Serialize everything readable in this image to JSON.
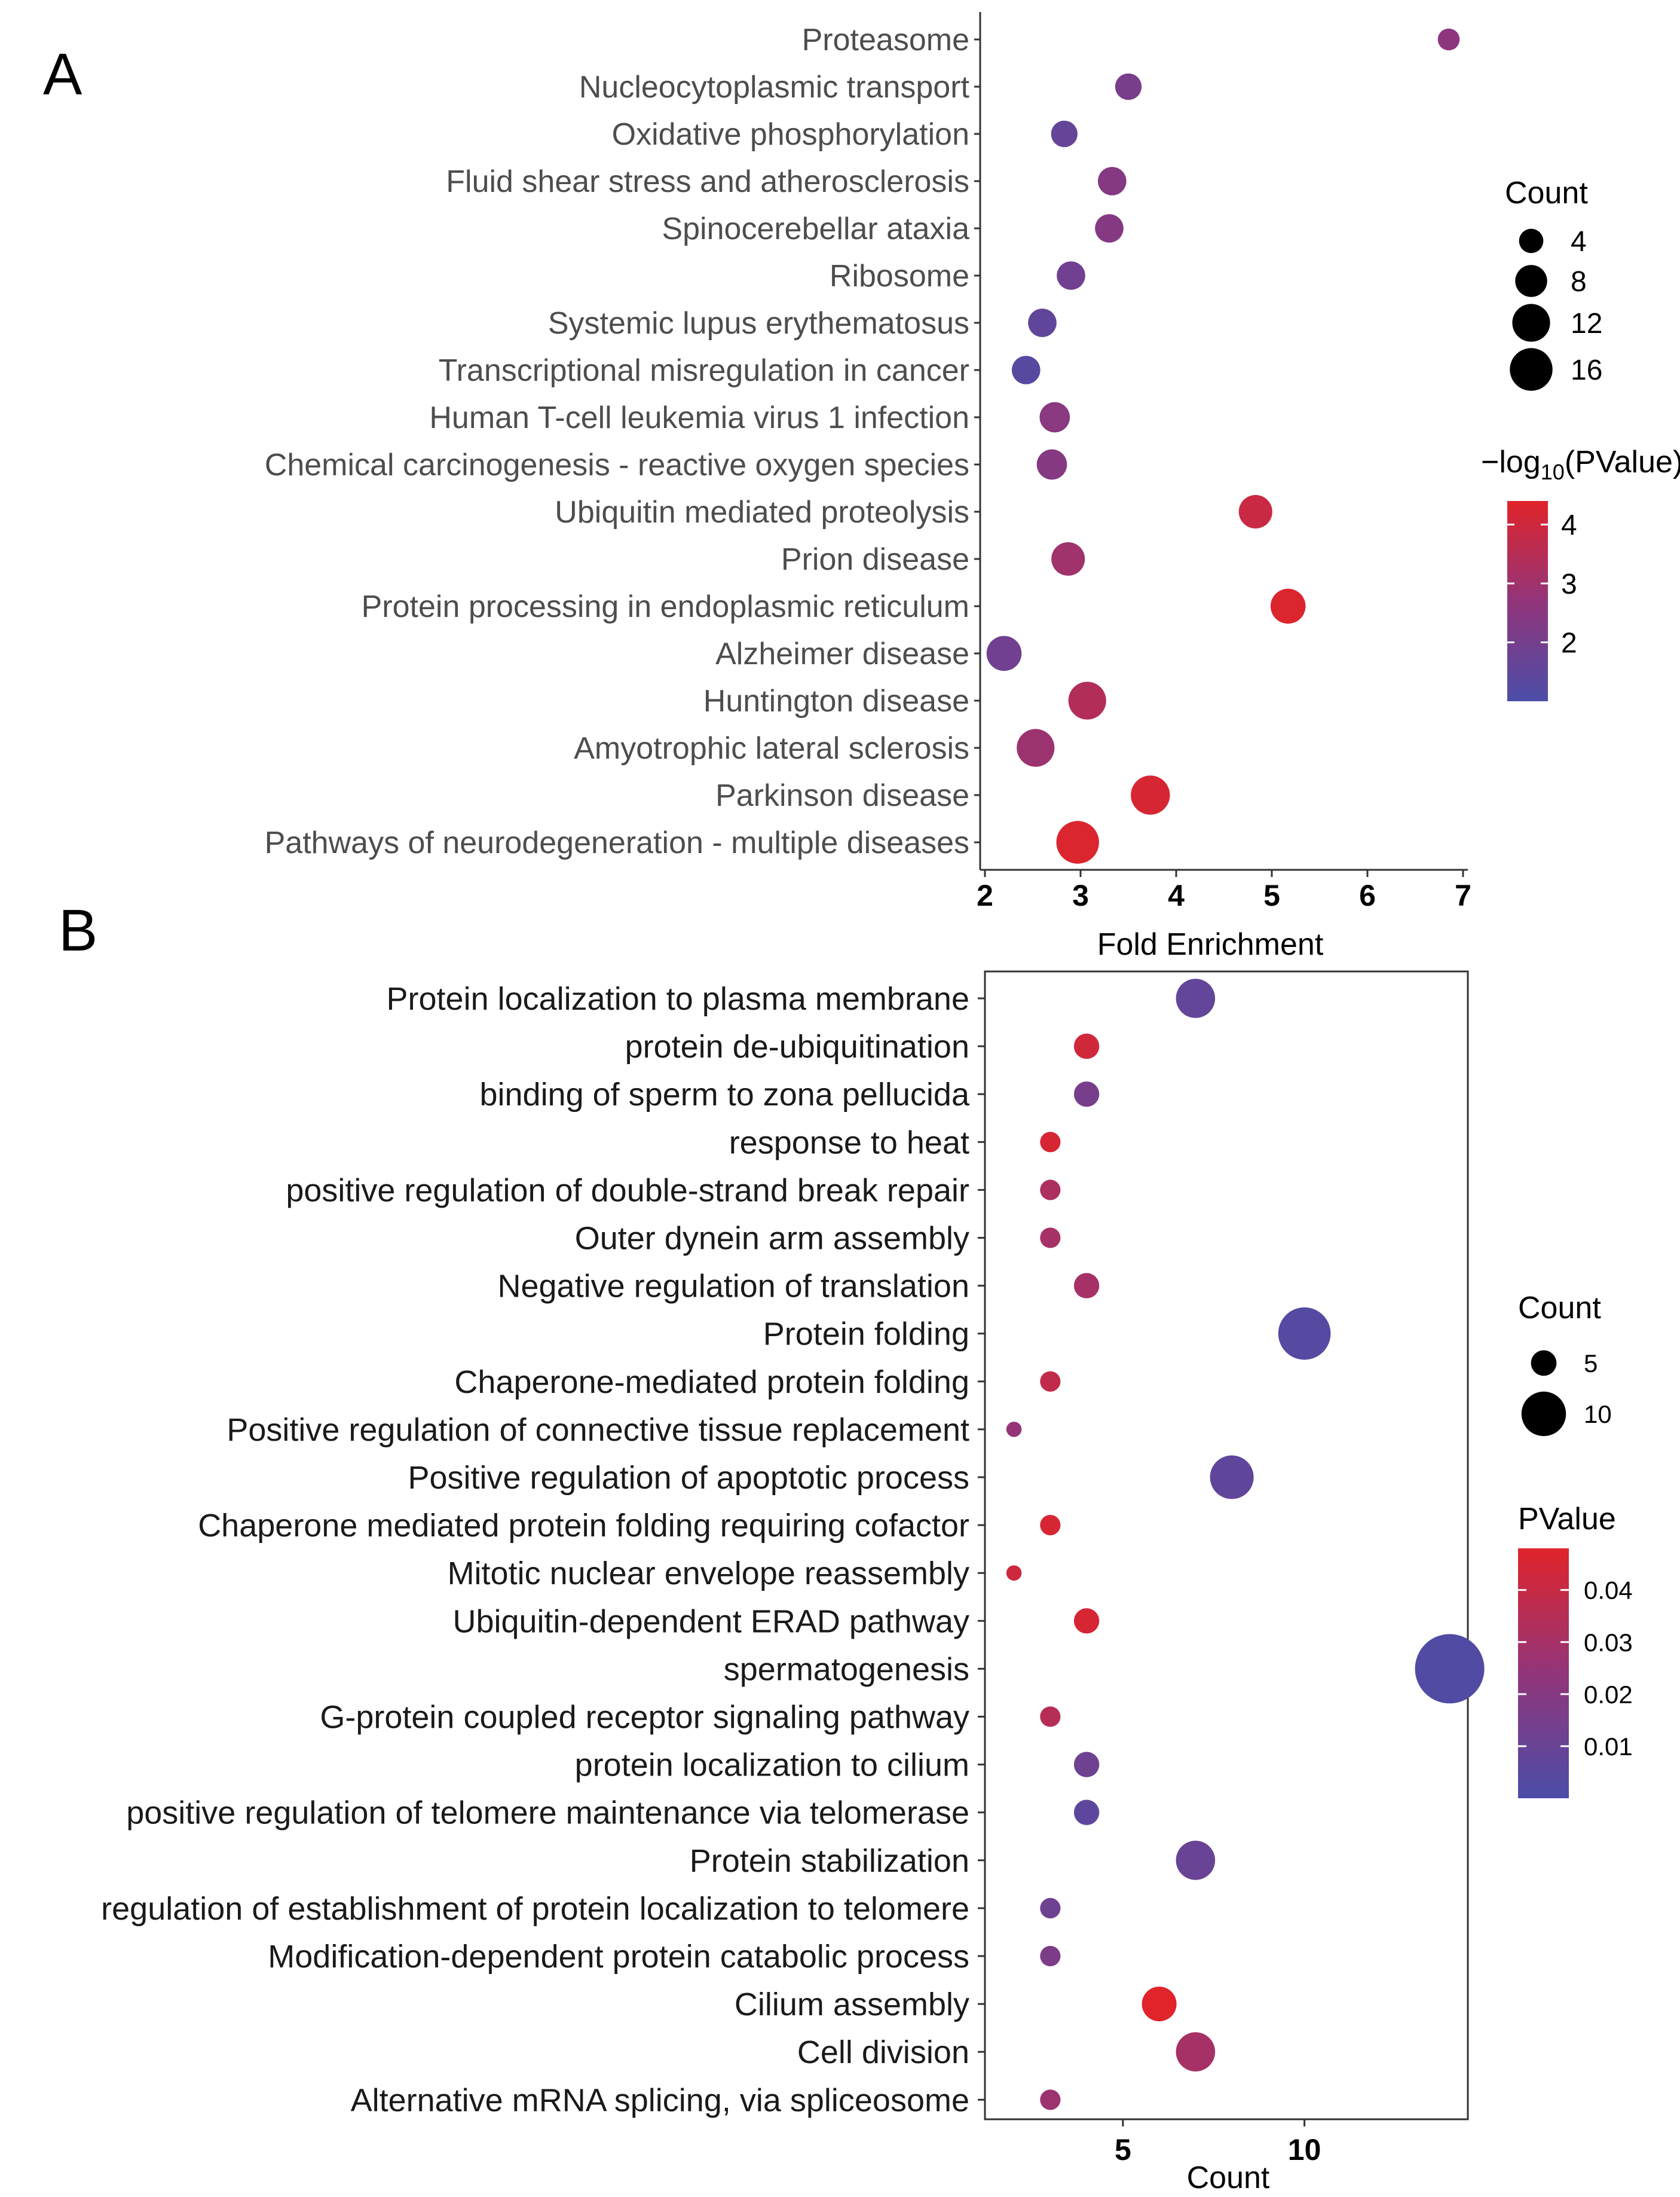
{
  "panels": {
    "A": "A",
    "B": "B"
  },
  "chart_data": [
    {
      "type": "scatter",
      "panel": "A",
      "title": "",
      "xlabel": "Fold Enrichment",
      "ylabel": "",
      "xlim": [
        1.95,
        7.05
      ],
      "xticks": [
        2,
        3,
        4,
        5,
        6,
        7
      ],
      "grid": false,
      "terms": [
        "Proteasome",
        "Nucleocytoplasmic transport",
        "Oxidative phosphorylation",
        "Fluid shear stress and atherosclerosis",
        "Spinocerebellar ataxia",
        "Ribosome",
        "Systemic lupus erythematosus",
        "Transcriptional misregulation in cancer",
        "Human T-cell leukemia virus 1 infection",
        "Chemical carcinogenesis - reactive oxygen species",
        "Ubiquitin mediated proteolysis",
        "Prion disease",
        "Protein processing in endoplasmic reticulum",
        "Alzheimer disease",
        "Huntington disease",
        "Amyotrophic lateral sclerosis",
        "Parkinson disease",
        "Pathways of neurodegeneration - multiple diseases"
      ],
      "fold_enrichment": [
        6.85,
        3.5,
        2.83,
        3.33,
        3.3,
        2.9,
        2.6,
        2.43,
        2.73,
        2.7,
        4.83,
        2.87,
        5.17,
        2.2,
        3.07,
        2.53,
        3.73,
        2.97
      ],
      "count": [
        3,
        5,
        5,
        6,
        6,
        6,
        6,
        6,
        7,
        7,
        9,
        9,
        10,
        10,
        12,
        12,
        13,
        16
      ],
      "color_value": [
        2.6,
        2.1,
        1.6,
        2.4,
        2.4,
        1.9,
        1.5,
        1.3,
        2.5,
        2.4,
        3.9,
        3.0,
        4.3,
        1.9,
        3.4,
        2.9,
        4.2,
        4.3
      ],
      "legend": {
        "size_title": "Count",
        "size_values": [
          4,
          8,
          12,
          16
        ],
        "color_title_prefix": "−log",
        "color_title_sub": "10",
        "color_title_suffix": "(PValue)",
        "color_ticks": [
          2,
          3,
          4
        ],
        "color_range": [
          1.0,
          4.4
        ],
        "color_low": "#4B4DA8",
        "color_high": "#E0242A"
      }
    },
    {
      "type": "scatter",
      "panel": "B",
      "title": "",
      "xlabel": "Count",
      "ylabel": "",
      "xlim": [
        1.2,
        14.5
      ],
      "xticks": [
        5,
        10
      ],
      "grid": false,
      "terms": [
        "Protein localization to plasma membrane",
        "protein de-ubiquitination",
        "binding of sperm to zona pellucida",
        "response to heat",
        "positive regulation of double-strand break repair",
        "Outer dynein arm assembly",
        "Negative regulation of translation",
        "Protein folding",
        "Chaperone-mediated protein folding",
        "Positive regulation of connective tissue replacement",
        "Positive regulation of apoptotic process",
        "Chaperone mediated protein folding requiring cofactor",
        "Mitotic nuclear envelope reassembly",
        "Ubiquitin-dependent ERAD pathway",
        "spermatogenesis",
        "G-protein coupled receptor signaling pathway",
        "protein localization to cilium",
        "positive regulation of telomere maintenance via telomerase",
        "Protein stabilization",
        "regulation of establishment of protein localization to telomere",
        "Modification-dependent protein catabolic process",
        "Cilium assembly",
        "Cell division",
        "Alternative mRNA splicing, via spliceosome"
      ],
      "count": [
        7,
        4,
        4,
        3,
        3,
        3,
        4,
        10,
        3,
        2,
        8,
        3,
        2,
        4,
        14,
        3,
        4,
        4,
        7,
        3,
        3,
        6,
        7,
        3
      ],
      "pvalue": [
        0.008,
        0.043,
        0.015,
        0.045,
        0.032,
        0.03,
        0.03,
        0.003,
        0.038,
        0.025,
        0.007,
        0.045,
        0.042,
        0.045,
        0.002,
        0.035,
        0.012,
        0.006,
        0.01,
        0.012,
        0.017,
        0.048,
        0.03,
        0.027
      ],
      "legend": {
        "size_title": "Count",
        "size_values": [
          5,
          10
        ],
        "color_title": "PValue",
        "color_ticks": [
          "0.01",
          "0.02",
          "0.03",
          "0.04"
        ],
        "color_tick_values": [
          0.01,
          0.02,
          0.03,
          0.04
        ],
        "color_range": [
          0.0,
          0.048
        ],
        "color_low": "#4B4DA8",
        "color_high": "#E0242A"
      }
    }
  ]
}
